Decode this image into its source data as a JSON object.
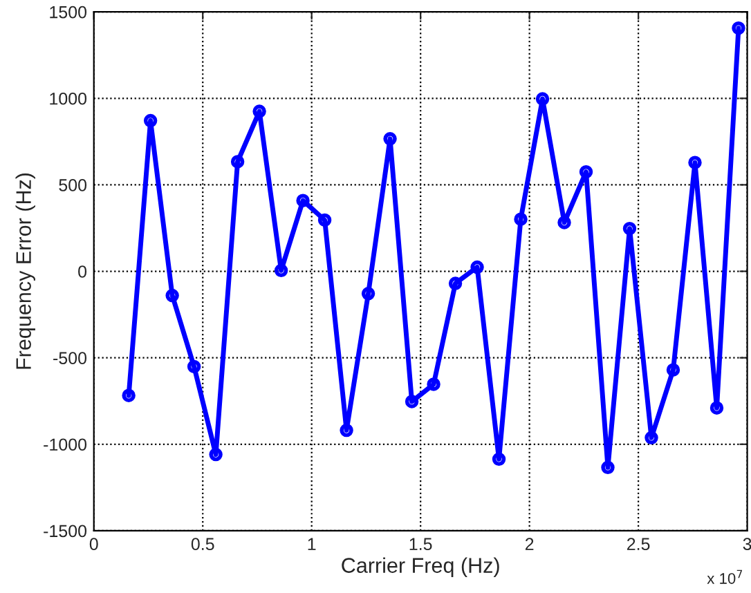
{
  "chart_data": {
    "type": "line",
    "xlabel": "Carrier Freq (Hz)",
    "ylabel": "Frequency Error (Hz)",
    "x": [
      0.16,
      0.26,
      0.36,
      0.46,
      0.56,
      0.66,
      0.76,
      0.86,
      0.96,
      1.06,
      1.16,
      1.26,
      1.36,
      1.46,
      1.56,
      1.66,
      1.76,
      1.86,
      1.96,
      2.06,
      2.16,
      2.26,
      2.36,
      2.46,
      2.56,
      2.66,
      2.76,
      2.86,
      2.96
    ],
    "series": [
      {
        "color": "#0000ff",
        "values": [
          -718,
          871,
          -140,
          -551,
          -1059,
          634,
          925,
          5,
          409,
          296,
          -919,
          -129,
          766,
          -753,
          -653,
          -70,
          24,
          -1086,
          301,
          997,
          282,
          575,
          -1134,
          247,
          -962,
          -570,
          629,
          -790,
          1406
        ]
      }
    ],
    "xlim": [
      0,
      3
    ],
    "xticks": [
      0,
      0.5,
      1,
      1.5,
      2,
      2.5,
      3
    ],
    "ylim": [
      -1500,
      1500
    ],
    "yticks": [
      -1500,
      -1000,
      -500,
      0,
      500,
      1000,
      1500
    ],
    "annotations": [
      "x 10$^{7}$"
    ],
    "grid": true,
    "marker": "circle",
    "line_style": "solid",
    "legend": false
  }
}
